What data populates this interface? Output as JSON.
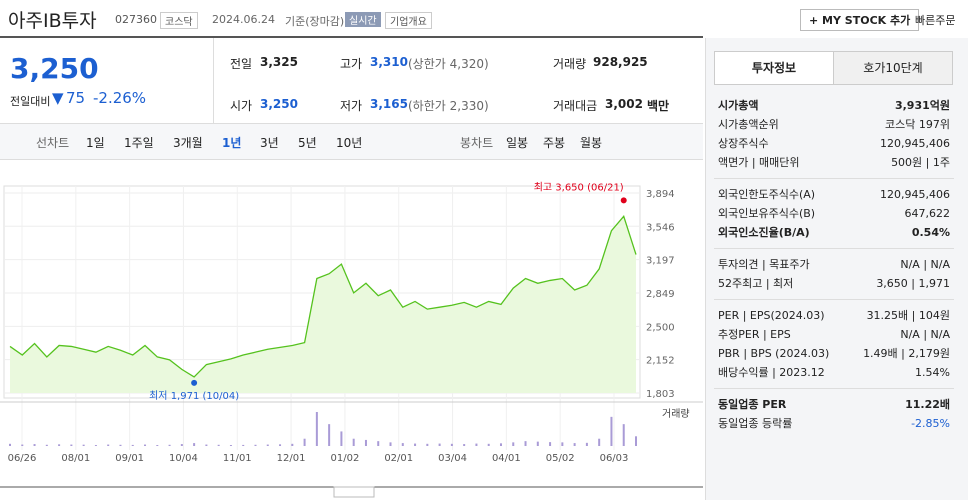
{
  "header": {
    "title": "아주IB투자",
    "code": "027360",
    "market": "코스닥",
    "date": "2024.06.24",
    "basis": "기준(장마감)",
    "realtime": "실시간",
    "company_info": "기업개요",
    "my_stock": "+ MY STOCK 추가",
    "quick_order": "빠른주문"
  },
  "price": {
    "current": "3,250",
    "change_label": "전일대비",
    "change": "75",
    "rate": "-2.26%"
  },
  "stats": [
    {
      "label": "전일",
      "value": "3,325"
    },
    {
      "label": "고가",
      "value": "3,310",
      "note": "(상한가 4,320)"
    },
    {
      "label": "거래량",
      "value": "928,925"
    },
    {
      "label": "시가",
      "value": "3,250"
    },
    {
      "label": "저가",
      "value": "3,165",
      "note": "(하한가 2,330)"
    },
    {
      "label": "거래대금",
      "value": "3,002",
      "unit": "백만"
    }
  ],
  "tabs": {
    "line_label": "선차트",
    "line": [
      "1일",
      "1주일",
      "3개월",
      "1년",
      "3년",
      "5년",
      "10년"
    ],
    "candle_label": "봉차트",
    "candle": [
      "일봉",
      "주봉",
      "월봉"
    ]
  },
  "chart": {
    "type": "area",
    "color": "#55c21e",
    "values": [
      2290,
      2200,
      2320,
      2180,
      2300,
      2290,
      2260,
      2230,
      2290,
      2250,
      2200,
      2300,
      2180,
      2150,
      2050,
      1971,
      2100,
      2130,
      2160,
      2200,
      2230,
      2260,
      2280,
      2300,
      2330,
      3000,
      3050,
      3150,
      2850,
      2950,
      2820,
      2880,
      2700,
      2760,
      2680,
      2700,
      2720,
      2750,
      2700,
      2760,
      2730,
      2900,
      3000,
      2950,
      2980,
      3000,
      2880,
      2930,
      3100,
      3500,
      3650,
      3250
    ],
    "volume": [
      90,
      60,
      80,
      50,
      70,
      60,
      55,
      40,
      60,
      50,
      45,
      60,
      40,
      50,
      80,
      120,
      60,
      50,
      40,
      45,
      50,
      60,
      70,
      90,
      300,
      1400,
      900,
      600,
      300,
      250,
      200,
      150,
      120,
      100,
      90,
      100,
      90,
      80,
      100,
      90,
      110,
      150,
      200,
      180,
      160,
      150,
      120,
      130,
      300,
      1200,
      900,
      400
    ],
    "volume_label": "거래량",
    "ylim": [
      1803,
      3894
    ],
    "yticks": [
      {
        "value": 1803,
        "label": "1,803"
      },
      {
        "value": 2152,
        "label": "2,152"
      },
      {
        "value": 2500,
        "label": "2,500"
      },
      {
        "value": 2849,
        "label": "2,849"
      },
      {
        "value": 3197,
        "label": "3,197"
      },
      {
        "value": 3546,
        "label": "3,546"
      },
      {
        "value": 3894,
        "label": "3,894"
      }
    ],
    "categories": [
      "06/26",
      "08/01",
      "09/01",
      "10/04",
      "11/01",
      "12/01",
      "01/02",
      "02/01",
      "03/04",
      "04/01",
      "05/02",
      "06/03"
    ],
    "high": {
      "label": "최고 3,650 (06/21)",
      "value": 3650
    },
    "low": {
      "label": "최저 1,971 (10/04)",
      "value": 1971
    }
  },
  "side": {
    "tabs": [
      "투자정보",
      "호가10단계"
    ],
    "sections": [
      [
        {
          "label": "시가총액",
          "value": "3,931억원"
        },
        {
          "label": "시가총액순위",
          "value": "코스닥 197위"
        },
        {
          "label": "상장주식수",
          "value": "120,945,406"
        },
        {
          "label": "액면가 | 매매단위",
          "value": "500원 | 1주"
        }
      ],
      [
        {
          "label": "외국인한도주식수(A)",
          "value": "120,945,406"
        },
        {
          "label": "외국인보유주식수(B)",
          "value": "647,622"
        },
        {
          "label": "외국인소진율(B/A)",
          "value": "0.54%"
        }
      ],
      [
        {
          "label": "투자의견 | 목표주가",
          "value": "N/A | N/A"
        },
        {
          "label": "52주최고 | 최저",
          "value": "3,650 | 1,971"
        }
      ],
      [
        {
          "label": "PER | EPS(2024.03)",
          "value": "31.25배 | 104원"
        },
        {
          "label": "추정PER | EPS",
          "value": "N/A | N/A"
        },
        {
          "label": "PBR | BPS (2024.03)",
          "value": "1.49배 | 2,179원"
        },
        {
          "label": "배당수익률 | 2023.12",
          "value": "1.54%"
        }
      ],
      [
        {
          "label": "동일업종 PER",
          "value": "11.22배"
        },
        {
          "label": "동일업종 등락률",
          "value": "-2.85%"
        }
      ]
    ]
  }
}
